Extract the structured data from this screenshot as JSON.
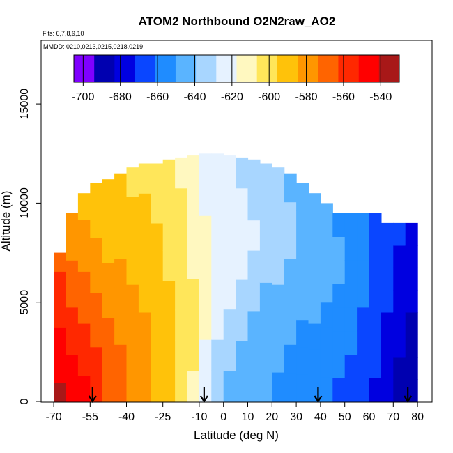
{
  "chart_data": {
    "type": "heatmap",
    "title": "ATOM2 Northbound O2N2raw_AO2",
    "flights_label": "Flts: 6,7,8,9,10",
    "dates_label": "MMDD: 0210,0213,0215,0218,0219",
    "xlabel": "Latitude (deg N)",
    "ylabel": "Altitude (m)",
    "xlim": [
      -70,
      85
    ],
    "ylim": [
      0,
      18000
    ],
    "x_ticks": [
      -70,
      -55,
      -40,
      -25,
      -10,
      0,
      10,
      20,
      30,
      40,
      50,
      60,
      70,
      80
    ],
    "y_ticks": [
      0,
      5000,
      10000,
      15000
    ],
    "colorbar": {
      "min": -705,
      "max": -530,
      "ticks": [
        -700,
        -680,
        -660,
        -640,
        -620,
        -600,
        -580,
        -560,
        -540
      ],
      "colors": [
        "#7f00ff",
        "#0000b0",
        "#0000e0",
        "#0a46ff",
        "#1f8cff",
        "#5ab4ff",
        "#a8d6ff",
        "#e6f2ff",
        "#fff8c0",
        "#ffe65a",
        "#ffc20a",
        "#ff9600",
        "#ff6400",
        "#ff2800",
        "#ff0000",
        "#a81818"
      ]
    },
    "profile_latitudes": [
      -54,
      -8,
      39,
      76
    ],
    "profile_marker": "arrow-down",
    "grid": false,
    "legend": "colorbar-top-inside",
    "columns": [
      {
        "lat": -67.5,
        "top": 7500,
        "vals": [
          -540,
          -545,
          -550,
          -550,
          -555,
          -560,
          -560,
          -565
        ]
      },
      {
        "lat": -62.5,
        "top": 9500,
        "vals": [
          -545,
          -550,
          -555,
          -560,
          -565,
          -570,
          -575,
          -580
        ]
      },
      {
        "lat": -57.5,
        "top": 10500,
        "vals": [
          -550,
          -555,
          -560,
          -565,
          -570,
          -575,
          -580,
          -585
        ]
      },
      {
        "lat": -52.5,
        "top": 11000,
        "vals": [
          -560,
          -562,
          -565,
          -570,
          -575,
          -580,
          -585,
          -590
        ]
      },
      {
        "lat": -47.5,
        "top": 11200,
        "vals": [
          -565,
          -568,
          -570,
          -575,
          -580,
          -585,
          -590,
          -595
        ]
      },
      {
        "lat": -42.5,
        "top": 11500,
        "vals": [
          -570,
          -572,
          -575,
          -580,
          -582,
          -585,
          -590,
          -595
        ]
      },
      {
        "lat": -37.5,
        "top": 11800,
        "vals": [
          -575,
          -578,
          -580,
          -582,
          -585,
          -588,
          -592,
          -598
        ]
      },
      {
        "lat": -32.5,
        "top": 12000,
        "vals": [
          -580,
          -582,
          -584,
          -586,
          -588,
          -590,
          -595,
          -600
        ]
      },
      {
        "lat": -27.5,
        "top": 12000,
        "vals": [
          -585,
          -586,
          -588,
          -590,
          -592,
          -595,
          -598,
          -602
        ]
      },
      {
        "lat": -22.5,
        "top": 12200,
        "vals": [
          -590,
          -590,
          -592,
          -594,
          -596,
          -598,
          -602,
          -605
        ]
      },
      {
        "lat": -17.5,
        "top": 12300,
        "vals": [
          -600,
          -598,
          -598,
          -600,
          -602,
          -604,
          -606,
          -610
        ]
      },
      {
        "lat": -12.5,
        "top": 12400,
        "vals": [
          -610,
          -606,
          -605,
          -606,
          -608,
          -610,
          -612,
          -615
        ]
      },
      {
        "lat": -7.5,
        "top": 12500,
        "vals": [
          -625,
          -618,
          -612,
          -610,
          -612,
          -615,
          -618,
          -620
        ]
      },
      {
        "lat": -2.5,
        "top": 12500,
        "vals": [
          -635,
          -630,
          -622,
          -618,
          -618,
          -620,
          -622,
          -625
        ]
      },
      {
        "lat": 2.5,
        "top": 12400,
        "vals": [
          -640,
          -638,
          -632,
          -626,
          -622,
          -622,
          -625,
          -628
        ]
      },
      {
        "lat": 7.5,
        "top": 12300,
        "vals": [
          -645,
          -642,
          -638,
          -632,
          -626,
          -625,
          -628,
          -630
        ]
      },
      {
        "lat": 12.5,
        "top": 12200,
        "vals": [
          -648,
          -645,
          -642,
          -636,
          -630,
          -628,
          -630,
          -632
        ]
      },
      {
        "lat": 17.5,
        "top": 12000,
        "vals": [
          -650,
          -648,
          -645,
          -640,
          -634,
          -630,
          -632,
          -635
        ]
      },
      {
        "lat": 22.5,
        "top": 11800,
        "vals": [
          -652,
          -650,
          -648,
          -643,
          -637,
          -633,
          -634,
          -638
        ]
      },
      {
        "lat": 27.5,
        "top": 11500,
        "vals": [
          -655,
          -652,
          -650,
          -646,
          -640,
          -636,
          -636,
          -640
        ]
      },
      {
        "lat": 32.5,
        "top": 11000,
        "vals": [
          -658,
          -655,
          -652,
          -648,
          -643,
          -640,
          -640,
          -643
        ]
      },
      {
        "lat": 37.5,
        "top": 10500,
        "vals": [
          -660,
          -657,
          -654,
          -650,
          -646,
          -643,
          -643,
          -646
        ]
      },
      {
        "lat": 42.5,
        "top": 10000,
        "vals": [
          -660,
          -658,
          -656,
          -652,
          -648,
          -646,
          -646,
          -648
        ]
      },
      {
        "lat": 47.5,
        "top": 9500,
        "vals": [
          -662,
          -660,
          -658,
          -655,
          -652,
          -650,
          -650,
          -652
        ]
      },
      {
        "lat": 52.5,
        "top": 9500,
        "vals": [
          -665,
          -662,
          -660,
          -657,
          -655,
          -653,
          -653,
          -655
        ]
      },
      {
        "lat": 57.5,
        "top": 9500,
        "vals": [
          -670,
          -668,
          -665,
          -662,
          -660,
          -658,
          -658,
          -660
        ]
      },
      {
        "lat": 62.5,
        "top": 9500,
        "vals": [
          -675,
          -672,
          -670,
          -668,
          -665,
          -663,
          -662,
          -662
        ]
      },
      {
        "lat": 67.5,
        "top": 9000,
        "vals": [
          -680,
          -678,
          -676,
          -674,
          -672,
          -670,
          -668,
          -668
        ]
      },
      {
        "lat": 72.5,
        "top": 9000,
        "vals": [
          -685,
          -684,
          -682,
          -680,
          -678,
          -676,
          -674,
          -672
        ]
      },
      {
        "lat": 77.5,
        "top": 9000,
        "vals": [
          -688,
          -687,
          -686,
          -684,
          -682,
          -680,
          -678,
          -676
        ]
      }
    ]
  }
}
